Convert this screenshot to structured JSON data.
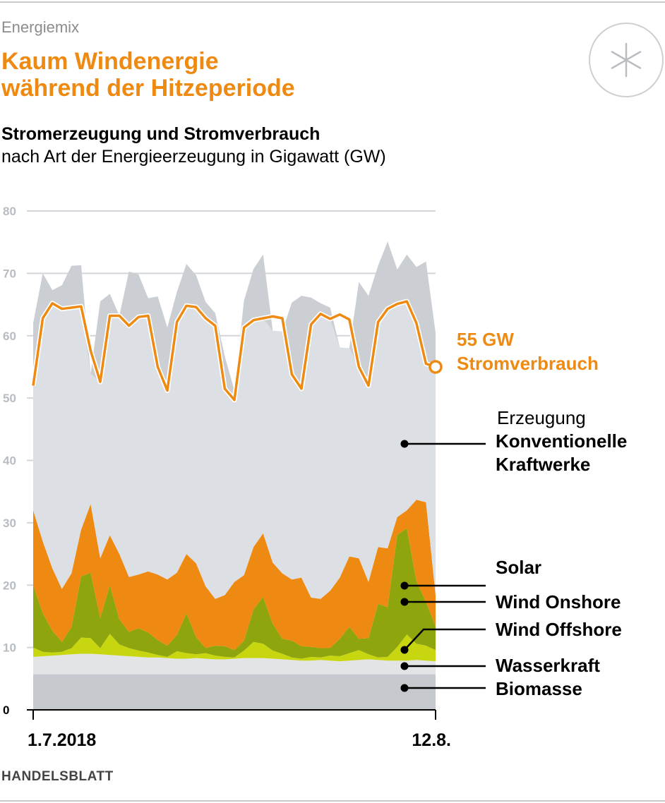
{
  "kicker": "Energiemix",
  "headline_line1": "Kaum Windenergie",
  "headline_line2": "während der Hitzeperiode",
  "subtitle": "Stromerzeugung und Stromverbrauch",
  "subline": "nach Art der Energieerzeugung in Gigawatt (GW)",
  "source": "HANDELSBLATT",
  "brand_icon": "asterisk-icon",
  "colors": {
    "accent": "#ee8a12",
    "conventional": "#dcdfe3",
    "conventional_peak": "#cbced3",
    "solar": "#ee8a12",
    "wind_onshore": "#8ea50d",
    "wind_offshore": "#c7d60f",
    "hydro": "#e2e4e6",
    "biomass": "#c5c9ce",
    "grid": "#d2d5d9"
  },
  "chart_data": {
    "type": "area",
    "title": "Stromerzeugung und Stromverbrauch",
    "ylabel": "Gigawatt (GW)",
    "ylim": [
      0,
      80
    ],
    "yticks": [
      "0",
      "10",
      "20",
      "30",
      "40",
      "50",
      "60",
      "70",
      "80"
    ],
    "xlabels": [
      "1.7.2018",
      "12.8."
    ],
    "days": 43,
    "series": [
      {
        "name": "Biomasse",
        "values": [
          5.7,
          5.7,
          5.7,
          5.7,
          5.7,
          5.7,
          5.7,
          5.7,
          5.7,
          5.7,
          5.7,
          5.7,
          5.7,
          5.7,
          5.7,
          5.7,
          5.7,
          5.7,
          5.7,
          5.7,
          5.7,
          5.7,
          5.7,
          5.7,
          5.7,
          5.7,
          5.7,
          5.7,
          5.7,
          5.7,
          5.7,
          5.7,
          5.7,
          5.7,
          5.7,
          5.7,
          5.7,
          5.7,
          5.7,
          5.7,
          5.7,
          5.7,
          5.7
        ]
      },
      {
        "name": "Wasserkraft",
        "values": [
          2.8,
          2.9,
          3.0,
          3.1,
          3.2,
          3.3,
          3.3,
          3.2,
          3.1,
          3.0,
          2.9,
          2.8,
          2.7,
          2.7,
          2.6,
          2.5,
          2.5,
          2.6,
          2.5,
          2.4,
          2.4,
          2.5,
          2.6,
          2.6,
          2.6,
          2.5,
          2.4,
          2.3,
          2.2,
          2.2,
          2.3,
          2.2,
          2.1,
          2.2,
          2.3,
          2.4,
          2.3,
          2.2,
          2.2,
          2.2,
          2.3,
          2.2,
          2.1
        ]
      },
      {
        "name": "Wind Offshore",
        "values": [
          1.5,
          0.7,
          0.5,
          0.5,
          1.0,
          2.6,
          2.5,
          1.0,
          3.4,
          1.8,
          1.3,
          1.0,
          0.8,
          0.4,
          0.2,
          1.2,
          0.9,
          0.6,
          0.9,
          0.6,
          0.4,
          0.2,
          1.2,
          2.6,
          2.3,
          1.3,
          0.9,
          0.4,
          0.3,
          0.6,
          0.4,
          0.8,
          0.8,
          1.2,
          1.6,
          0.8,
          0.4,
          0.6,
          2.2,
          4.2,
          2.6,
          2.4,
          1.8
        ]
      },
      {
        "name": "Wind Onshore",
        "values": [
          10.0,
          6.2,
          3.5,
          1.6,
          3.4,
          9.8,
          10.5,
          4.8,
          7.8,
          4.0,
          2.6,
          3.6,
          3.2,
          2.4,
          1.8,
          2.6,
          6.4,
          2.8,
          0.8,
          1.6,
          1.7,
          1.2,
          1.6,
          5.2,
          7.5,
          4.3,
          2.4,
          2.7,
          2.0,
          1.6,
          1.5,
          1.2,
          2.8,
          4.2,
          1.8,
          2.6,
          8.6,
          8.0,
          18.0,
          17.0,
          10.0,
          7.0,
          3.8
        ]
      },
      {
        "name": "Solar",
        "values": [
          12.0,
          11.5,
          10.0,
          8.5,
          8.6,
          7.5,
          11.0,
          9.6,
          8.0,
          10.5,
          8.8,
          8.6,
          9.8,
          10.5,
          10.6,
          10.0,
          9.5,
          11.8,
          9.9,
          7.5,
          8.2,
          10.9,
          10.5,
          10.0,
          10.2,
          9.8,
          10.5,
          9.8,
          11.0,
          7.9,
          7.9,
          9.2,
          9.8,
          11.3,
          12.9,
          9.0,
          9.1,
          9.4,
          2.8,
          2.9,
          13.1,
          16.0,
          5.0
        ]
      },
      {
        "name": "Konventionelle Kraftwerke",
        "values": [
          30.0,
          43.0,
          44.6,
          48.7,
          49.3,
          42.4,
          20.9,
          41.2,
          38.7,
          38.2,
          49.0,
          48.1,
          43.8,
          44.6,
          40.4,
          45.0,
          46.5,
          46.2,
          45.6,
          45.8,
          38.3,
          30.7,
          44.0,
          44.6,
          44.7,
          37.2,
          38.8,
          44.4,
          45.2,
          48.1,
          47.4,
          45.4,
          36.9,
          33.4,
          44.3,
          45.9,
          45.1,
          49.2,
          39.7,
          41.0,
          37.3,
          38.6,
          42.0
        ]
      }
    ],
    "consumption": {
      "name": "Stromverbrauch",
      "values": [
        52,
        62.8,
        65.2,
        64.3,
        64.5,
        64.7,
        57.6,
        52.6,
        63.2,
        63.2,
        61.6,
        63.0,
        63.2,
        55.0,
        51.2,
        62.2,
        64.8,
        64.6,
        62.8,
        61.6,
        51.5,
        49.7,
        61.3,
        62.5,
        62.8,
        63.1,
        62.8,
        53.8,
        51.5,
        61.8,
        63.5,
        62.7,
        63.4,
        62.6,
        55.0,
        52.0,
        62.2,
        64.3,
        65.1,
        65.5,
        62.0,
        55.5,
        55.0
      ],
      "annotation_value": "55 GW",
      "annotation_label": "Stromverbrauch"
    },
    "legend": [
      {
        "key": "erzeugung",
        "text": "Erzeugung"
      },
      {
        "key": "conventional",
        "text1": "Konventionelle",
        "text2": "Kraftwerke"
      },
      {
        "key": "solar",
        "text": "Solar"
      },
      {
        "key": "wind_onshore",
        "text": "Wind Onshore"
      },
      {
        "key": "wind_offshore",
        "text": "Wind Offshore"
      },
      {
        "key": "hydro",
        "text": "Wasserkraft"
      },
      {
        "key": "biomass",
        "text": "Biomasse"
      }
    ]
  }
}
